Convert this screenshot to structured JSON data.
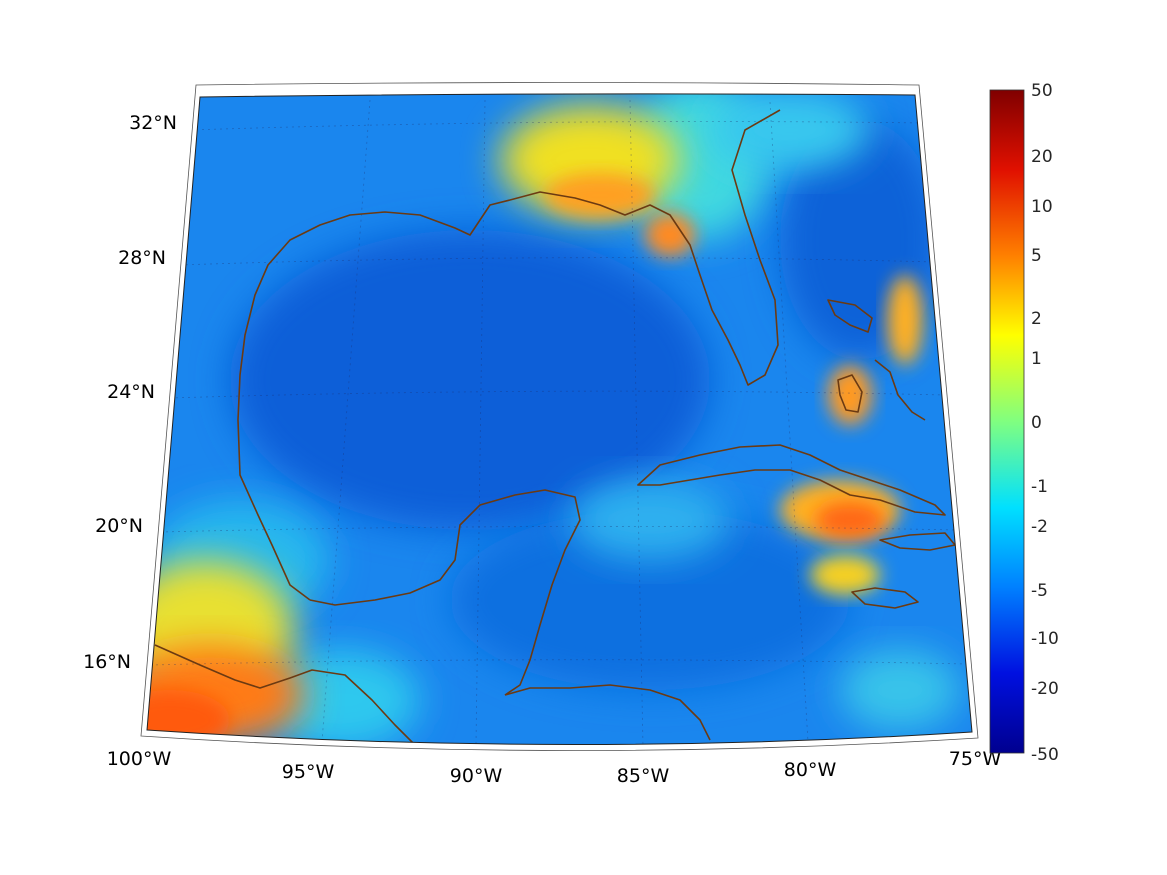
{
  "map": {
    "projection": "conic",
    "extent": {
      "lon": [
        -100,
        -75
      ],
      "lat": [
        14,
        33
      ]
    },
    "longitude_labels": [
      "100°W",
      "95°W",
      "90°W",
      "85°W",
      "80°W",
      "75°W"
    ],
    "latitude_labels": [
      "32°N",
      "28°N",
      "24°N",
      "20°N",
      "16°N"
    ],
    "graticule": "dotted",
    "coastline_color": "#6b3a12",
    "background_field_color": "#0a78e6",
    "highlights": [
      {
        "region": "Florida Panhandle coast",
        "approx_value": 2
      },
      {
        "region": "Southern Mexico / Guatemala",
        "approx_value": 5
      },
      {
        "region": "Eastern Cuba",
        "approx_value": 5
      },
      {
        "region": "Bahamas / Andros",
        "approx_value": 3
      }
    ]
  },
  "colorbar": {
    "colormap": "jet",
    "tick_labels": [
      "50",
      "20",
      "10",
      "5",
      "2",
      "1",
      "0",
      "-1",
      "-2",
      "-5",
      "-10",
      "-20",
      "-50"
    ]
  }
}
